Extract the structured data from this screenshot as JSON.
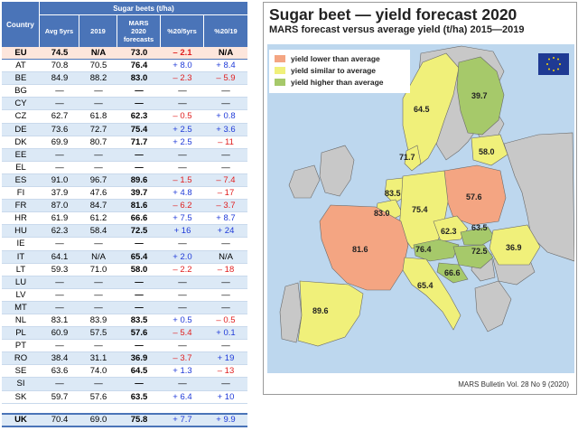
{
  "table": {
    "header": {
      "country": "Country",
      "span": "Sugar beets (t/ha)",
      "avg": "Avg 5yrs",
      "y2019": "2019",
      "mars_l1": "MARS",
      "mars_l2": "2020",
      "mars_l3": "forecasts",
      "pct5": "%20/5yrs",
      "pct19": "%20/19"
    },
    "rows": [
      {
        "country": "EU",
        "avg": "74.5",
        "y2019": "N/A",
        "mars": "73.0",
        "pct5": "– 2.1",
        "pct19": "N/A"
      },
      {
        "country": "AT",
        "avg": "70.8",
        "y2019": "70.5",
        "mars": "76.4",
        "pct5": "+ 8.0",
        "pct19": "+ 8.4"
      },
      {
        "country": "BE",
        "avg": "84.9",
        "y2019": "88.2",
        "mars": "83.0",
        "pct5": "– 2.3",
        "pct19": "– 5.9"
      },
      {
        "country": "BG",
        "avg": "—",
        "y2019": "—",
        "mars": "—",
        "pct5": "—",
        "pct19": "—"
      },
      {
        "country": "CY",
        "avg": "—",
        "y2019": "—",
        "mars": "—",
        "pct5": "—",
        "pct19": "—"
      },
      {
        "country": "CZ",
        "avg": "62.7",
        "y2019": "61.8",
        "mars": "62.3",
        "pct5": "– 0.5",
        "pct19": "+ 0.8"
      },
      {
        "country": "DE",
        "avg": "73.6",
        "y2019": "72.7",
        "mars": "75.4",
        "pct5": "+ 2.5",
        "pct19": "+ 3.6"
      },
      {
        "country": "DK",
        "avg": "69.9",
        "y2019": "80.7",
        "mars": "71.7",
        "pct5": "+ 2.5",
        "pct19": "– 11"
      },
      {
        "country": "EE",
        "avg": "—",
        "y2019": "—",
        "mars": "—",
        "pct5": "—",
        "pct19": "—"
      },
      {
        "country": "EL",
        "avg": "—",
        "y2019": "—",
        "mars": "—",
        "pct5": "—",
        "pct19": "—"
      },
      {
        "country": "ES",
        "avg": "91.0",
        "y2019": "96.7",
        "mars": "89.6",
        "pct5": "– 1.5",
        "pct19": "– 7.4"
      },
      {
        "country": "FI",
        "avg": "37.9",
        "y2019": "47.6",
        "mars": "39.7",
        "pct5": "+ 4.8",
        "pct19": "– 17"
      },
      {
        "country": "FR",
        "avg": "87.0",
        "y2019": "84.7",
        "mars": "81.6",
        "pct5": "– 6.2",
        "pct19": "– 3.7"
      },
      {
        "country": "HR",
        "avg": "61.9",
        "y2019": "61.2",
        "mars": "66.6",
        "pct5": "+ 7.5",
        "pct19": "+ 8.7"
      },
      {
        "country": "HU",
        "avg": "62.3",
        "y2019": "58.4",
        "mars": "72.5",
        "pct5": "+ 16",
        "pct19": "+ 24"
      },
      {
        "country": "IE",
        "avg": "—",
        "y2019": "—",
        "mars": "—",
        "pct5": "—",
        "pct19": "—"
      },
      {
        "country": "IT",
        "avg": "64.1",
        "y2019": "N/A",
        "mars": "65.4",
        "pct5": "+ 2.0",
        "pct19": "N/A"
      },
      {
        "country": "LT",
        "avg": "59.3",
        "y2019": "71.0",
        "mars": "58.0",
        "pct5": "– 2.2",
        "pct19": "– 18"
      },
      {
        "country": "LU",
        "avg": "—",
        "y2019": "—",
        "mars": "—",
        "pct5": "—",
        "pct19": "—"
      },
      {
        "country": "LV",
        "avg": "—",
        "y2019": "—",
        "mars": "—",
        "pct5": "—",
        "pct19": "—"
      },
      {
        "country": "MT",
        "avg": "—",
        "y2019": "—",
        "mars": "—",
        "pct5": "—",
        "pct19": "—"
      },
      {
        "country": "NL",
        "avg": "83.1",
        "y2019": "83.9",
        "mars": "83.5",
        "pct5": "+ 0.5",
        "pct19": "– 0.5"
      },
      {
        "country": "PL",
        "avg": "60.9",
        "y2019": "57.5",
        "mars": "57.6",
        "pct5": "– 5.4",
        "pct19": "+ 0.1"
      },
      {
        "country": "PT",
        "avg": "—",
        "y2019": "—",
        "mars": "—",
        "pct5": "—",
        "pct19": "—"
      },
      {
        "country": "RO",
        "avg": "38.4",
        "y2019": "31.1",
        "mars": "36.9",
        "pct5": "– 3.7",
        "pct19": "+ 19"
      },
      {
        "country": "SE",
        "avg": "63.6",
        "y2019": "74.0",
        "mars": "64.5",
        "pct5": "+ 1.3",
        "pct19": "– 13"
      },
      {
        "country": "SI",
        "avg": "—",
        "y2019": "—",
        "mars": "—",
        "pct5": "—",
        "pct19": "—"
      },
      {
        "country": "SK",
        "avg": "59.7",
        "y2019": "57.6",
        "mars": "63.5",
        "pct5": "+ 6.4",
        "pct19": "+ 10"
      }
    ],
    "uk": {
      "country": "UK",
      "avg": "70.4",
      "y2019": "69.0",
      "mars": "75.8",
      "pct5": "+ 7.7",
      "pct19": "+ 9.9"
    }
  },
  "map": {
    "title": "Sugar beet — yield forecast 2020",
    "subtitle": "MARS forecast versus average yield (t/ha) 2015—2019",
    "footer": "MARS Bulletin Vol. 28 No 9 (2020)",
    "legend": [
      {
        "label": "yield lower than average",
        "color": "#f4a582"
      },
      {
        "label": "yield similar to average",
        "color": "#f0f07a"
      },
      {
        "label": "yield higher than average",
        "color": "#a6c96a"
      }
    ],
    "colors": {
      "sea": "#bdd7ee",
      "nodata": "#c8c8c8",
      "border": "#6a6a6a"
    },
    "logo_text": "European Commission",
    "labels": {
      "SE": "64.5",
      "FI": "39.7",
      "LT": "58.0",
      "DK": "71.7",
      "PL": "57.6",
      "NL": "83.5",
      "BE": "83.0",
      "DE": "75.4",
      "CZ": "62.3",
      "SK": "63.5",
      "AT": "76.4",
      "HU": "72.5",
      "HR": "66.6",
      "RO": "36.9",
      "FR": "81.6",
      "IT": "65.4",
      "ES": "89.6"
    }
  }
}
